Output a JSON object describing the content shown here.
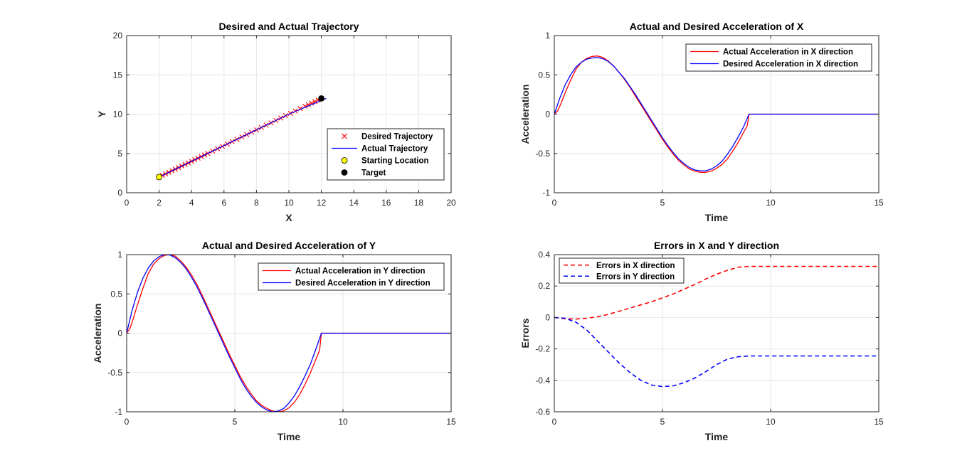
{
  "figure": {
    "background": "#ffffff",
    "colors": {
      "red": "#ff0000",
      "blue": "#0000ff",
      "black": "#000000",
      "yellow": "#ffff00",
      "grid": "#e6e6e6",
      "axis": "#262626"
    }
  },
  "chart_data": [
    {
      "id": "trajectory",
      "type": "scatter",
      "title": "Desired and Actual Trajectory",
      "xlabel": "X",
      "ylabel": "Y",
      "xlim": [
        0,
        20
      ],
      "ylim": [
        0,
        20
      ],
      "xticks": [
        0,
        2,
        4,
        6,
        8,
        10,
        12,
        14,
        16,
        18,
        20
      ],
      "yticks": [
        0,
        5,
        10,
        15,
        20
      ],
      "grid": true,
      "legend": "bottom-right",
      "series": [
        {
          "name": "Desired Trajectory",
          "marker": "x",
          "color": "#ff0000",
          "x": [
            2.0,
            2.2,
            2.4,
            2.6,
            2.8,
            3.0,
            3.2,
            3.4,
            3.6,
            3.8,
            4.0,
            4.2,
            4.4,
            4.6,
            4.8,
            5.0,
            5.3,
            5.6,
            5.9,
            6.2,
            6.5,
            6.8,
            7.1,
            7.4,
            7.7,
            8.0,
            8.3,
            8.6,
            8.9,
            9.2,
            9.5,
            9.8,
            10.1,
            10.4,
            10.7,
            11.0,
            11.2,
            11.4,
            11.6,
            11.8,
            12.0
          ],
          "y": [
            2.0,
            2.2,
            2.4,
            2.6,
            2.8,
            3.0,
            3.2,
            3.4,
            3.6,
            3.8,
            4.0,
            4.2,
            4.4,
            4.6,
            4.8,
            5.0,
            5.3,
            5.6,
            5.9,
            6.2,
            6.5,
            6.8,
            7.1,
            7.4,
            7.7,
            8.0,
            8.3,
            8.6,
            8.9,
            9.2,
            9.5,
            9.8,
            10.1,
            10.4,
            10.7,
            11.0,
            11.2,
            11.4,
            11.6,
            11.8,
            12.0
          ]
        },
        {
          "name": "Actual Trajectory",
          "marker": "line",
          "color": "#0000ff",
          "x": [
            2.0,
            4.0,
            6.0,
            8.0,
            10.0,
            12.3
          ],
          "y": [
            2.0,
            4.0,
            6.0,
            8.0,
            10.0,
            12.0
          ]
        },
        {
          "name": "Starting Location",
          "marker": "circle",
          "color": "#ffff00",
          "x": [
            2.0
          ],
          "y": [
            2.0
          ]
        },
        {
          "name": "Target",
          "marker": "circle",
          "color": "#000000",
          "x": [
            12.0
          ],
          "y": [
            12.0
          ]
        }
      ]
    },
    {
      "id": "accel_x",
      "type": "line",
      "title": "Actual and Desired Acceleration of X",
      "xlabel": "Time",
      "ylabel": "Acceleration",
      "xlim": [
        0,
        15
      ],
      "ylim": [
        -1,
        1
      ],
      "xticks": [
        0,
        5,
        10,
        15
      ],
      "yticks": [
        -1,
        -0.5,
        0,
        0.5,
        1
      ],
      "ytick_labels": [
        "-1",
        "-0.5",
        "0",
        "0.5",
        "1"
      ],
      "grid": true,
      "legend": "top-right",
      "series": [
        {
          "name": "Actual Acceleration in X direction",
          "color": "#ff0000",
          "style": "solid",
          "x": [
            0.0,
            0.15,
            0.3,
            0.5,
            0.75,
            1.0,
            1.25,
            1.5,
            1.75,
            2.0,
            2.25,
            2.5,
            2.75,
            3.0,
            3.25,
            3.5,
            3.75,
            4.0,
            4.25,
            4.5,
            4.75,
            5.0,
            5.25,
            5.5,
            5.75,
            6.0,
            6.25,
            6.5,
            6.75,
            7.0,
            7.25,
            7.5,
            7.75,
            8.0,
            8.25,
            8.5,
            8.75,
            8.9,
            8.93,
            9.0,
            9.5,
            10.0,
            11.0,
            12.0,
            13.0,
            14.0,
            15.0
          ],
          "y": [
            0.0,
            0.04,
            0.13,
            0.27,
            0.43,
            0.57,
            0.66,
            0.71,
            0.735,
            0.74,
            0.72,
            0.675,
            0.61,
            0.53,
            0.44,
            0.34,
            0.23,
            0.12,
            0.01,
            -0.1,
            -0.21,
            -0.32,
            -0.42,
            -0.51,
            -0.59,
            -0.65,
            -0.7,
            -0.725,
            -0.74,
            -0.74,
            -0.725,
            -0.69,
            -0.64,
            -0.57,
            -0.47,
            -0.36,
            -0.23,
            -0.16,
            -0.13,
            0.0,
            0.0,
            0.0,
            0.0,
            0.0,
            0.0,
            0.0,
            0.0
          ]
        },
        {
          "name": "Desired Acceleration in X direction",
          "color": "#0000ff",
          "style": "solid",
          "x": [
            0.0,
            0.25,
            0.5,
            0.75,
            1.0,
            1.25,
            1.5,
            1.75,
            2.0,
            2.25,
            2.5,
            2.75,
            3.0,
            3.25,
            3.5,
            3.75,
            4.0,
            4.25,
            4.5,
            4.75,
            5.0,
            5.25,
            5.5,
            5.75,
            6.0,
            6.25,
            6.5,
            6.75,
            7.0,
            7.25,
            7.5,
            7.75,
            8.0,
            8.25,
            8.5,
            8.75,
            9.0,
            9.5,
            10.0,
            11.0,
            12.0,
            13.0,
            14.0,
            15.0
          ],
          "y": [
            0.0,
            0.2,
            0.37,
            0.5,
            0.6,
            0.66,
            0.7,
            0.715,
            0.72,
            0.705,
            0.67,
            0.61,
            0.53,
            0.45,
            0.35,
            0.25,
            0.14,
            0.03,
            -0.08,
            -0.19,
            -0.3,
            -0.4,
            -0.49,
            -0.57,
            -0.63,
            -0.68,
            -0.71,
            -0.72,
            -0.72,
            -0.7,
            -0.66,
            -0.6,
            -0.51,
            -0.41,
            -0.29,
            -0.16,
            0.0,
            0.0,
            0.0,
            0.0,
            0.0,
            0.0,
            0.0,
            0.0
          ]
        }
      ]
    },
    {
      "id": "accel_y",
      "type": "line",
      "title": "Actual and Desired Acceleration of Y",
      "xlabel": "Time",
      "ylabel": "Acceleration",
      "xlim": [
        0,
        15
      ],
      "ylim": [
        -1,
        1
      ],
      "xticks": [
        0,
        5,
        10,
        15
      ],
      "yticks": [
        -1,
        -0.5,
        0,
        0.5,
        1
      ],
      "ytick_labels": [
        "-1",
        "-0.5",
        "0",
        "0.5",
        "1"
      ],
      "grid": true,
      "legend": "top-right",
      "series": [
        {
          "name": "Actual Acceleration in Y direction",
          "color": "#ff0000",
          "style": "solid",
          "x": [
            0.0,
            0.15,
            0.3,
            0.5,
            0.75,
            1.0,
            1.25,
            1.5,
            1.75,
            2.0,
            2.25,
            2.5,
            2.75,
            3.0,
            3.25,
            3.5,
            3.75,
            4.0,
            4.25,
            4.5,
            4.75,
            5.0,
            5.25,
            5.5,
            5.75,
            6.0,
            6.25,
            6.5,
            6.75,
            7.0,
            7.25,
            7.5,
            7.75,
            8.0,
            8.25,
            8.5,
            8.75,
            8.9,
            8.93,
            9.0,
            9.5,
            10.0,
            11.0,
            12.0,
            13.0,
            14.0,
            15.0
          ],
          "y": [
            0.0,
            0.06,
            0.18,
            0.36,
            0.57,
            0.76,
            0.88,
            0.95,
            0.99,
            1.0,
            0.98,
            0.92,
            0.84,
            0.74,
            0.62,
            0.48,
            0.33,
            0.18,
            0.03,
            -0.12,
            -0.27,
            -0.41,
            -0.55,
            -0.67,
            -0.77,
            -0.86,
            -0.92,
            -0.96,
            -0.99,
            -1.0,
            -0.99,
            -0.95,
            -0.88,
            -0.78,
            -0.65,
            -0.5,
            -0.33,
            -0.23,
            -0.19,
            0.0,
            0.0,
            0.0,
            0.0,
            0.0,
            0.0,
            0.0,
            0.0
          ]
        },
        {
          "name": "Desired Acceleration in Y direction",
          "color": "#0000ff",
          "style": "solid",
          "x": [
            0.0,
            0.25,
            0.5,
            0.75,
            1.0,
            1.25,
            1.5,
            1.75,
            2.0,
            2.25,
            2.5,
            2.75,
            3.0,
            3.25,
            3.5,
            3.75,
            4.0,
            4.25,
            4.5,
            4.75,
            5.0,
            5.25,
            5.5,
            5.75,
            6.0,
            6.25,
            6.5,
            6.75,
            7.0,
            7.25,
            7.5,
            7.75,
            8.0,
            8.25,
            8.5,
            8.75,
            9.0,
            9.5,
            10.0,
            11.0,
            12.0,
            13.0,
            14.0,
            15.0
          ],
          "y": [
            0.0,
            0.29,
            0.52,
            0.7,
            0.83,
            0.92,
            0.975,
            1.0,
            0.995,
            0.96,
            0.9,
            0.82,
            0.71,
            0.59,
            0.45,
            0.3,
            0.15,
            0.0,
            -0.15,
            -0.3,
            -0.44,
            -0.58,
            -0.7,
            -0.8,
            -0.88,
            -0.94,
            -0.98,
            -1.0,
            -0.99,
            -0.96,
            -0.89,
            -0.8,
            -0.68,
            -0.54,
            -0.39,
            -0.2,
            0.0,
            0.0,
            0.0,
            0.0,
            0.0,
            0.0,
            0.0,
            0.0
          ]
        }
      ]
    },
    {
      "id": "errors",
      "type": "line",
      "title": "Errors in X and Y direction",
      "xlabel": "Time",
      "ylabel": "Errors",
      "xlim": [
        0,
        15
      ],
      "ylim": [
        -0.6,
        0.4
      ],
      "xticks": [
        0,
        5,
        10,
        15
      ],
      "yticks": [
        -0.6,
        -0.4,
        -0.2,
        0,
        0.2,
        0.4
      ],
      "ytick_labels": [
        "-0.6",
        "-0.4",
        "-0.2",
        "0",
        "0.2",
        "0.4"
      ],
      "grid": true,
      "legend": "top-left",
      "series": [
        {
          "name": "Errors in X direction",
          "color": "#ff0000",
          "style": "dashed",
          "x": [
            0.0,
            0.5,
            1.0,
            1.5,
            2.0,
            2.5,
            3.0,
            3.5,
            4.0,
            4.5,
            5.0,
            5.5,
            6.0,
            6.5,
            7.0,
            7.5,
            8.0,
            8.5,
            9.0,
            10.0,
            11.0,
            12.0,
            13.0,
            14.0,
            15.0
          ],
          "y": [
            0.0,
            -0.008,
            -0.01,
            -0.005,
            0.005,
            0.02,
            0.04,
            0.06,
            0.08,
            0.1,
            0.125,
            0.15,
            0.18,
            0.21,
            0.245,
            0.275,
            0.3,
            0.32,
            0.325,
            0.325,
            0.325,
            0.325,
            0.325,
            0.325,
            0.325
          ]
        },
        {
          "name": "Errors in Y direction",
          "color": "#0000ff",
          "style": "dashed",
          "x": [
            0.0,
            0.5,
            1.0,
            1.5,
            2.0,
            2.5,
            3.0,
            3.5,
            4.0,
            4.5,
            5.0,
            5.5,
            6.0,
            6.5,
            7.0,
            7.5,
            8.0,
            8.5,
            9.0,
            10.0,
            11.0,
            12.0,
            13.0,
            14.0,
            15.0
          ],
          "y": [
            0.0,
            -0.005,
            -0.03,
            -0.08,
            -0.15,
            -0.22,
            -0.29,
            -0.35,
            -0.4,
            -0.43,
            -0.44,
            -0.435,
            -0.415,
            -0.385,
            -0.345,
            -0.3,
            -0.265,
            -0.25,
            -0.245,
            -0.245,
            -0.245,
            -0.245,
            -0.245,
            -0.245,
            -0.245
          ]
        }
      ]
    }
  ]
}
